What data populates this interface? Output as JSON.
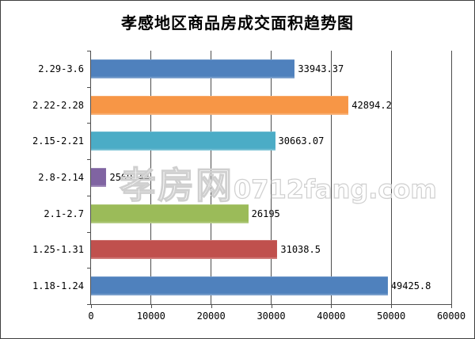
{
  "title": "孝感地区商品房成交面积趋势图",
  "watermark": {
    "cjk": "孝房网",
    "latin": "0712fang.com"
  },
  "chart_data": {
    "type": "bar",
    "orientation": "horizontal",
    "title": "孝感地区商品房成交面积趋势图",
    "categories": [
      "2.29-3.6",
      "2.22-2.28",
      "2.15-2.21",
      "2.8-2.14",
      "2.1-2.7",
      "1.25-1.31",
      "1.18-1.24"
    ],
    "values": [
      33943.37,
      42894.2,
      30663.07,
      2569.44,
      26195,
      31038.5,
      49425.8
    ],
    "value_labels": [
      "33943.37",
      "42894.2",
      "30663.07",
      "2569.44",
      "26195",
      "31038.5",
      "49425.8"
    ],
    "colors": [
      "#4F81BD",
      "#F79646",
      "#4BACC6",
      "#8064A2",
      "#9BBB59",
      "#C0504D",
      "#4F81BD"
    ],
    "x_ticks": [
      0,
      10000,
      20000,
      30000,
      40000,
      50000,
      60000
    ],
    "x_tick_labels": [
      "0",
      "10000",
      "20000",
      "30000",
      "40000",
      "50000",
      "60000"
    ],
    "xlim": [
      0,
      60000
    ],
    "xlabel": "",
    "ylabel": "",
    "grid": "vertical",
    "legend": "none",
    "gridline_color": "#4d4d4d",
    "axis_color": "#4d4d4d"
  }
}
